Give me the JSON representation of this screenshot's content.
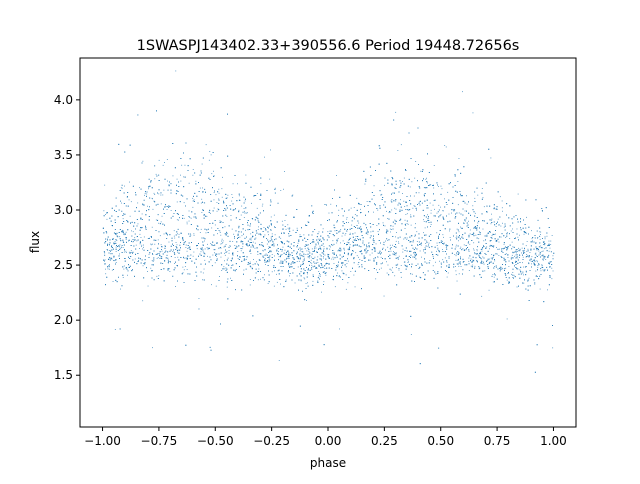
{
  "chart_data": {
    "type": "scatter",
    "title": "1SWASPJ143402.33+390556.6 Period 19448.72656s",
    "xlabel": "phase",
    "ylabel": "flux",
    "xlim": [
      -1.1,
      1.1
    ],
    "ylim": [
      1.03,
      4.38
    ],
    "xticks": [
      -1.0,
      -0.75,
      -0.5,
      -0.25,
      0.0,
      0.25,
      0.5,
      0.75,
      1.0
    ],
    "xtick_labels": [
      "−1.00",
      "−0.75",
      "−0.50",
      "−0.25",
      "0.00",
      "0.25",
      "0.50",
      "0.75",
      "1.00"
    ],
    "yticks": [
      1.5,
      2.0,
      2.5,
      3.0,
      3.5,
      4.0
    ],
    "ytick_labels": [
      "1.5",
      "2.0",
      "2.5",
      "3.0",
      "3.5",
      "4.0"
    ],
    "grid": false,
    "point_color": "#1f77b4",
    "series": [
      {
        "x": [
          -1.0,
          -0.9,
          -0.8,
          -0.7,
          -0.6,
          -0.5,
          -0.4,
          -0.3,
          -0.2,
          -0.1,
          0.0,
          0.1,
          0.2,
          0.3,
          0.4,
          0.5,
          0.6,
          0.7,
          0.8,
          0.9,
          1.0
        ],
        "y": [
          2.6,
          2.6,
          2.6,
          2.6,
          2.6,
          2.6,
          2.6,
          2.6,
          2.58,
          2.57,
          2.58,
          2.6,
          2.6,
          2.6,
          2.6,
          2.6,
          2.6,
          2.6,
          2.58,
          2.57,
          2.58
        ]
      },
      {
        "x": [
          -1.0,
          -0.9,
          -0.8,
          -0.7,
          -0.6,
          -0.5,
          -0.4,
          -0.3,
          -0.2,
          -0.1,
          0.0,
          0.1,
          0.2,
          0.3,
          0.4,
          0.5,
          0.6,
          0.7,
          0.8,
          0.9,
          1.0
        ],
        "y": [
          2.7,
          2.85,
          3.0,
          3.1,
          3.1,
          3.0,
          2.9,
          2.8,
          2.7,
          2.62,
          2.65,
          2.8,
          2.95,
          3.1,
          3.1,
          3.0,
          2.9,
          2.8,
          2.7,
          2.62,
          2.65
        ]
      }
    ]
  }
}
